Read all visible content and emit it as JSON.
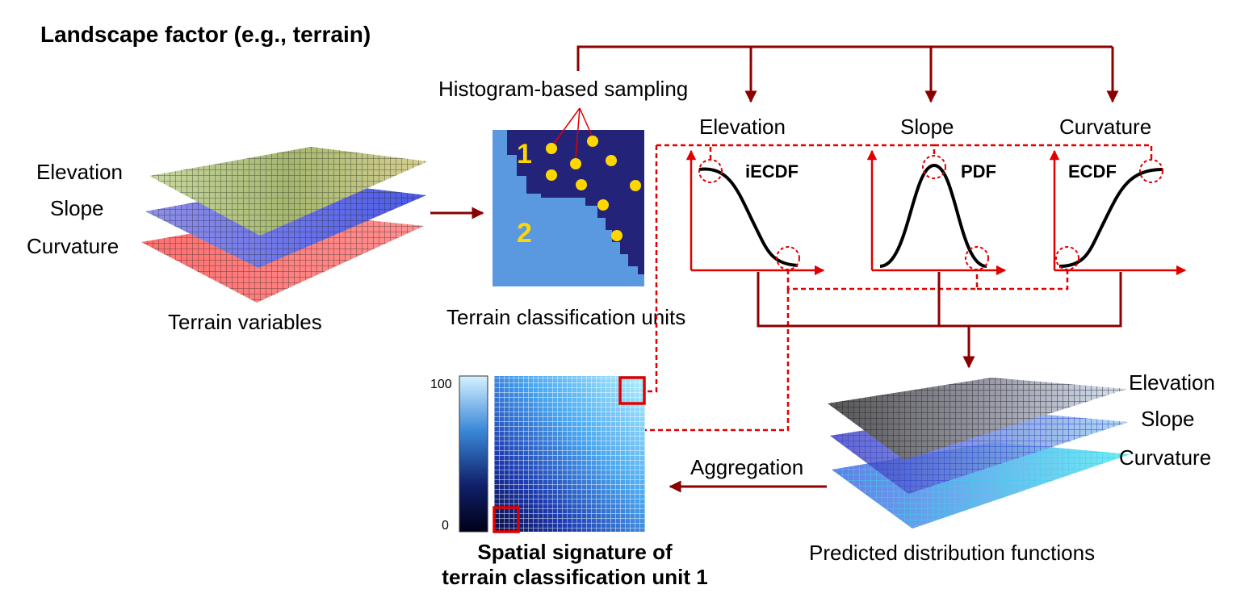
{
  "title": "Landscape factor (e.g., terrain)",
  "terrain_variables": {
    "layers": [
      "Elevation",
      "Slope",
      "Curvature"
    ],
    "caption": "Terrain variables"
  },
  "classification": {
    "sampling_label": "Histogram-based sampling",
    "unit_labels": [
      "1",
      "2"
    ],
    "caption": "Terrain classification units"
  },
  "functions": [
    {
      "variable": "Elevation",
      "name": "iECDF"
    },
    {
      "variable": "Slope",
      "name": "PDF"
    },
    {
      "variable": "Curvature",
      "name": "ECDF"
    }
  ],
  "predicted": {
    "layers": [
      "Elevation",
      "Slope",
      "Curvature"
    ],
    "caption": "Predicted distribution functions"
  },
  "aggregation_label": "Aggregation",
  "signature": {
    "colorbar_max": "100",
    "colorbar_min": "0",
    "caption_line1": "Spatial signature of",
    "caption_line2": "terrain classification unit 1"
  },
  "colors": {
    "arrow_dark_red": "#8b0000",
    "highlight_red": "#e00000",
    "unit_dark_blue": "#23237a",
    "unit_light_blue": "#5a98e0",
    "sample_point": "#ffd700",
    "unit_label": "#ffd700"
  }
}
